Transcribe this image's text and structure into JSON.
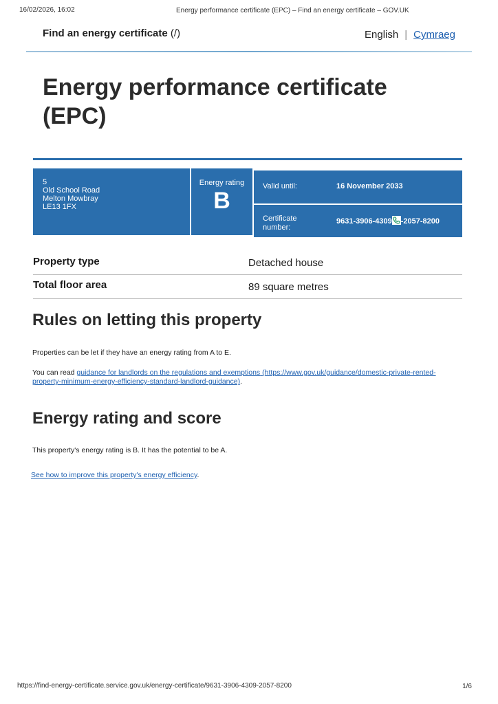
{
  "print_header": {
    "datetime": "16/02/2026, 16:02",
    "page_title": "Energy performance certificate (EPC) – Find an energy certificate – GOV.UK"
  },
  "header": {
    "site_name": "Find an energy certificate",
    "site_link_suffix": "(/)",
    "lang_english": "English",
    "lang_separator": "|",
    "lang_welsh": "Cymraeg"
  },
  "title": "Energy performance certificate (EPC)",
  "banner": {
    "address": [
      "5",
      "Old School Road",
      "Melton Mowbray",
      "LE13 1FX"
    ],
    "rating_label": "Energy rating",
    "rating": "B",
    "valid_label": "Valid until:",
    "valid_value": "16 November 2033",
    "cert_label": "Certificate number:",
    "cert_part1": "9631-3906-4309",
    "cert_part2": "-2057-8200",
    "phone_icon": "phone-icon"
  },
  "summary": [
    {
      "key": "Property type",
      "value": "Detached house"
    },
    {
      "key": "Total floor area",
      "value": "89 square metres"
    }
  ],
  "rules": {
    "heading": "Rules on letting this property",
    "para1": "Properties can be let if they have an energy rating from A to E.",
    "para2_prefix": "You can read ",
    "para2_link": "guidance for landlords on the regulations and exemptions",
    "para2_url": " (https://www.gov.uk/guidance/domestic-private-rented-property-minimum-energy-efficiency-standard-landlord-guidance)",
    "para2_suffix": "."
  },
  "rating_section": {
    "heading": "Energy rating and score",
    "para": "This property's energy rating is B. It has the potential to be A.",
    "link": "See how to improve this property's energy efficiency",
    "link_suffix": "."
  },
  "print_footer": {
    "url": "https://find-energy-certificate.service.gov.uk/energy-certificate/9631-3906-4309-2057-8200",
    "page": "1/6"
  },
  "colors": {
    "banner_blue": "#2a6ead",
    "link_blue": "#1d5fb0"
  }
}
